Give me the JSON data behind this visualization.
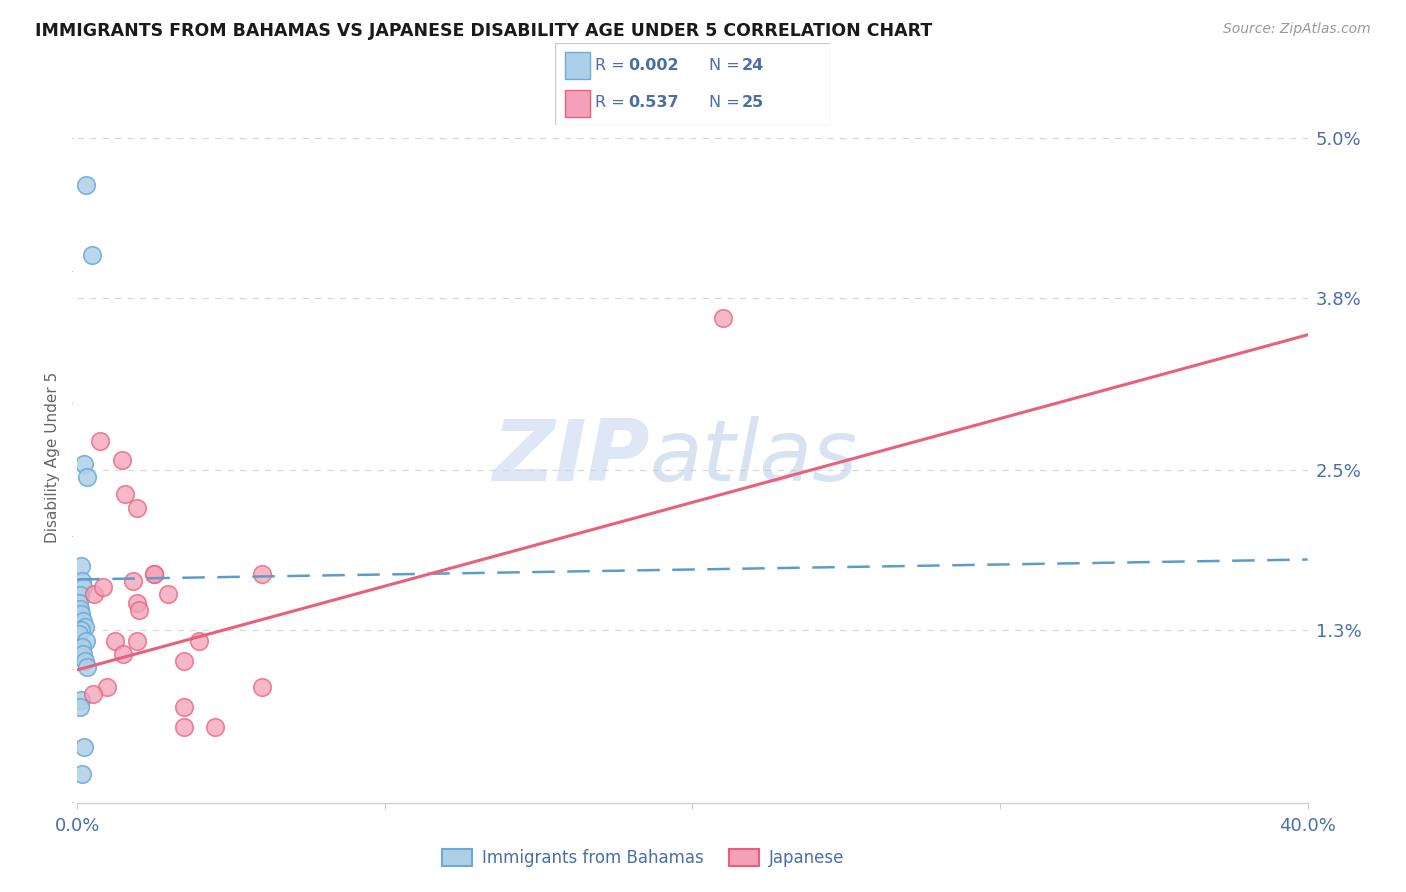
{
  "title": "IMMIGRANTS FROM BAHAMAS VS JAPANESE DISABILITY AGE UNDER 5 CORRELATION CHART",
  "source": "Source: ZipAtlas.com",
  "ylabel": "Disability Age Under 5",
  "xmin": 0.0,
  "xmax": 40.0,
  "ymin": 0.0,
  "ymax": 5.2,
  "yticks": [
    0.0,
    1.3,
    2.5,
    3.8,
    5.0
  ],
  "ytick_labels": [
    "",
    "1.3%",
    "2.5%",
    "3.8%",
    "5.0%"
  ],
  "blue_fill": "#aecfe8",
  "blue_edge": "#6aaad4",
  "pink_fill": "#f4a0b8",
  "pink_edge": "#e8607a",
  "blue_line": "#5b9dc9",
  "pink_line": "#e8607a",
  "bahamas_x": [
    0.28,
    0.48,
    0.22,
    0.32,
    0.12,
    0.15,
    0.18,
    0.1,
    0.06,
    0.09,
    0.13,
    0.17,
    0.24,
    0.11,
    0.06,
    0.28,
    0.14,
    0.19,
    0.24,
    0.33,
    0.11,
    0.09,
    0.21,
    0.16
  ],
  "bahamas_y": [
    4.65,
    4.12,
    2.55,
    2.45,
    1.78,
    1.67,
    1.62,
    1.56,
    1.5,
    1.46,
    1.42,
    1.37,
    1.32,
    1.3,
    1.27,
    1.22,
    1.17,
    1.12,
    1.07,
    1.02,
    0.77,
    0.72,
    0.42,
    0.22
  ],
  "japanese_x": [
    0.75,
    1.45,
    1.55,
    1.95,
    1.8,
    2.95,
    2.5,
    3.95,
    1.95,
    0.55,
    0.82,
    1.22,
    1.48,
    2.48,
    3.48,
    0.95,
    0.52,
    3.48,
    3.48,
    4.48,
    6.0,
    6.0,
    21.0,
    1.95,
    2.02
  ],
  "japanese_y": [
    2.72,
    2.58,
    2.32,
    2.22,
    1.67,
    1.57,
    1.72,
    1.22,
    1.22,
    1.57,
    1.62,
    1.22,
    1.12,
    1.72,
    1.07,
    0.87,
    0.82,
    0.72,
    0.57,
    0.57,
    1.72,
    0.87,
    3.65,
    1.5,
    1.45
  ],
  "bahamas_trend_x": [
    0.0,
    40.0
  ],
  "bahamas_trend_y": [
    1.68,
    1.83
  ],
  "japanese_trend_x": [
    0.0,
    40.0
  ],
  "japanese_trend_y": [
    1.0,
    3.52
  ],
  "legend_r1": "0.002",
  "legend_n1": "24",
  "legend_r2": "0.537",
  "legend_n2": "25",
  "legend_label1": "Immigrants from Bahamas",
  "legend_label2": "Japanese",
  "label_color": "#4a6fa5",
  "title_color": "#1a1a1a",
  "source_color": "#999999",
  "ylabel_color": "#666666",
  "grid_color": "#d8d8d8",
  "watermark_zip_color": "#c8d8ef",
  "watermark_atlas_color": "#b8cce8"
}
